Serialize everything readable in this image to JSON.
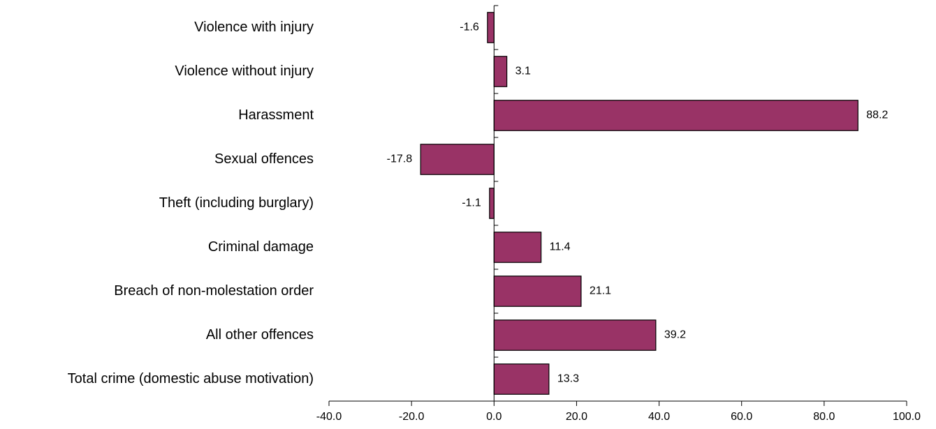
{
  "chart_data": {
    "type": "bar",
    "orientation": "horizontal",
    "categories": [
      "Violence with injury",
      "Violence without injury",
      "Harassment",
      "Sexual offences",
      "Theft (including burglary)",
      "Criminal damage",
      "Breach of non-molestation order",
      "All other offences",
      "Total crime (domestic abuse motivation)"
    ],
    "values": [
      -1.6,
      3.1,
      88.2,
      -17.8,
      -1.1,
      11.4,
      21.1,
      39.2,
      13.3
    ],
    "value_labels": [
      "-1.6",
      "3.1",
      "88.2",
      "-17.8",
      "-1.1",
      "11.4",
      "21.1",
      "39.2",
      "13.3"
    ],
    "xlim": [
      -40,
      100
    ],
    "xticks": [
      -40,
      -20,
      0,
      20,
      40,
      60,
      80,
      100
    ],
    "xtick_labels": [
      "-40.0",
      "-20.0",
      "0.0",
      "20.0",
      "40.0",
      "60.0",
      "80.0",
      "100.0"
    ],
    "grid": false,
    "legend": "none",
    "title": "",
    "xlabel": "",
    "ylabel": "",
    "bar_color": "#993366",
    "bar_edge_color": "#000000"
  }
}
